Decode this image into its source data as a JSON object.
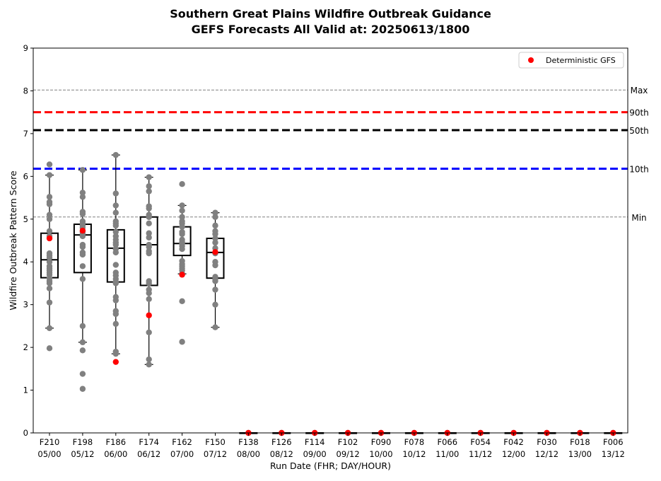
{
  "chart_data": {
    "type": "box",
    "title": "Southern Great Plains Wildfire Outbreak Guidance",
    "subtitle": "GEFS Forecasts All Valid at: 20250613/1800",
    "xlabel": "Run Date (FHR; DAY/HOUR)",
    "ylabel": "Wildfire Outbreak Pattern Score",
    "ylim": [
      0,
      9
    ],
    "yticks": [
      "0",
      "1",
      "2",
      "3",
      "4",
      "5",
      "6",
      "7",
      "8",
      "9"
    ],
    "categories": [
      {
        "fhr": "F210",
        "date": "05/00"
      },
      {
        "fhr": "F198",
        "date": "05/12"
      },
      {
        "fhr": "F186",
        "date": "06/00"
      },
      {
        "fhr": "F174",
        "date": "06/12"
      },
      {
        "fhr": "F162",
        "date": "07/00"
      },
      {
        "fhr": "F150",
        "date": "07/12"
      },
      {
        "fhr": "F138",
        "date": "08/00"
      },
      {
        "fhr": "F126",
        "date": "08/12"
      },
      {
        "fhr": "F114",
        "date": "09/00"
      },
      {
        "fhr": "F102",
        "date": "09/12"
      },
      {
        "fhr": "F090",
        "date": "10/00"
      },
      {
        "fhr": "F078",
        "date": "10/12"
      },
      {
        "fhr": "F066",
        "date": "11/00"
      },
      {
        "fhr": "F054",
        "date": "11/12"
      },
      {
        "fhr": "F042",
        "date": "12/00"
      },
      {
        "fhr": "F030",
        "date": "12/12"
      },
      {
        "fhr": "F018",
        "date": "13/00"
      },
      {
        "fhr": "F006",
        "date": "13/12"
      }
    ],
    "boxes": [
      {
        "min": 2.45,
        "q1": 3.63,
        "median": 4.05,
        "q3": 4.67,
        "max": 6.03
      },
      {
        "min": 2.12,
        "q1": 3.75,
        "median": 4.63,
        "q3": 4.88,
        "max": 6.15
      },
      {
        "min": 1.85,
        "q1": 3.53,
        "median": 4.32,
        "q3": 4.75,
        "max": 6.5
      },
      {
        "min": 1.6,
        "q1": 3.45,
        "median": 4.4,
        "q3": 5.05,
        "max": 5.98
      },
      {
        "min": 3.72,
        "q1": 4.15,
        "median": 4.43,
        "q3": 4.82,
        "max": 5.32
      },
      {
        "min": 2.47,
        "q1": 3.62,
        "median": 4.22,
        "q3": 4.55,
        "max": 5.15
      },
      {
        "min": 0,
        "q1": 0,
        "median": 0,
        "q3": 0,
        "max": 0
      },
      {
        "min": 0,
        "q1": 0,
        "median": 0,
        "q3": 0,
        "max": 0
      },
      {
        "min": 0,
        "q1": 0,
        "median": 0,
        "q3": 0,
        "max": 0
      },
      {
        "min": 0,
        "q1": 0,
        "median": 0,
        "q3": 0,
        "max": 0
      },
      {
        "min": 0,
        "q1": 0,
        "median": 0,
        "q3": 0,
        "max": 0
      },
      {
        "min": 0,
        "q1": 0,
        "median": 0,
        "q3": 0,
        "max": 0
      },
      {
        "min": 0,
        "q1": 0,
        "median": 0,
        "q3": 0,
        "max": 0
      },
      {
        "min": 0,
        "q1": 0,
        "median": 0,
        "q3": 0,
        "max": 0
      },
      {
        "min": 0,
        "q1": 0,
        "median": 0,
        "q3": 0,
        "max": 0
      },
      {
        "min": 0,
        "q1": 0,
        "median": 0,
        "q3": 0,
        "max": 0
      },
      {
        "min": 0,
        "q1": 0,
        "median": 0,
        "q3": 0,
        "max": 0
      },
      {
        "min": 0,
        "q1": 0,
        "median": 0,
        "q3": 0,
        "max": 0
      }
    ],
    "ensemble_members": [
      [
        6.28,
        6.03,
        5.52,
        5.4,
        5.35,
        5.1,
        5.0,
        4.72,
        4.6,
        4.2,
        4.15,
        4.1,
        4.0,
        3.9,
        3.85,
        3.8,
        3.75,
        3.7,
        3.62,
        3.55,
        3.5,
        3.38,
        3.05,
        2.45,
        1.98
      ],
      [
        6.15,
        5.62,
        5.52,
        5.17,
        5.12,
        4.95,
        4.9,
        4.85,
        4.8,
        4.7,
        4.65,
        4.6,
        4.4,
        4.35,
        4.22,
        4.17,
        3.9,
        3.6,
        2.5,
        2.12,
        1.93,
        1.38,
        1.03
      ],
      [
        6.5,
        5.6,
        5.32,
        5.15,
        4.95,
        4.9,
        4.85,
        4.7,
        4.6,
        4.52,
        4.45,
        4.4,
        4.3,
        4.22,
        3.93,
        3.75,
        3.68,
        3.6,
        3.53,
        3.5,
        3.18,
        3.1,
        2.85,
        2.78,
        2.55,
        1.9,
        1.85
      ],
      [
        5.98,
        5.77,
        5.65,
        5.3,
        5.25,
        5.1,
        5.05,
        4.9,
        4.67,
        4.57,
        4.4,
        4.35,
        4.25,
        4.2,
        3.55,
        3.5,
        3.35,
        3.27,
        3.13,
        2.35,
        1.72,
        1.6
      ],
      [
        5.82,
        5.32,
        5.2,
        5.05,
        4.95,
        4.9,
        4.82,
        4.7,
        4.65,
        4.52,
        4.47,
        4.43,
        4.37,
        4.3,
        4.02,
        3.95,
        3.9,
        3.85,
        3.8,
        3.72,
        3.08,
        2.13
      ],
      [
        5.15,
        5.05,
        4.85,
        4.72,
        4.65,
        4.55,
        4.45,
        4.32,
        4.2,
        4.0,
        3.92,
        3.65,
        3.6,
        3.55,
        3.35,
        3.0,
        2.47
      ],
      [
        0
      ],
      [
        0
      ],
      [
        0
      ],
      [
        0
      ],
      [
        0
      ],
      [
        0
      ],
      [
        0
      ],
      [
        0
      ],
      [
        0
      ],
      [
        0
      ],
      [
        0
      ],
      [
        0
      ]
    ],
    "deterministic": {
      "name": "Deterministic GFS",
      "values": [
        4.55,
        4.73,
        1.66,
        2.75,
        3.7,
        4.23,
        0,
        0,
        0,
        0,
        0,
        0,
        0,
        0,
        0,
        0,
        0,
        0
      ],
      "color": "#ff0000"
    },
    "member_color": "#808080",
    "reference_lines": [
      {
        "label": "Max",
        "value": 8.02,
        "color": "#808080",
        "style": "thin-dashed"
      },
      {
        "label": "90th",
        "value": 7.5,
        "color": "#ff0000",
        "style": "thick-dashed"
      },
      {
        "label": "50th",
        "value": 7.08,
        "color": "#000000",
        "style": "thick-dashed"
      },
      {
        "label": "10th",
        "value": 6.18,
        "color": "#0000ff",
        "style": "thick-dashed"
      },
      {
        "label": "Min",
        "value": 5.05,
        "color": "#808080",
        "style": "thin-dashed"
      }
    ],
    "legend": {
      "position": "top-right",
      "entries": [
        "Deterministic GFS"
      ]
    },
    "grid": false
  }
}
